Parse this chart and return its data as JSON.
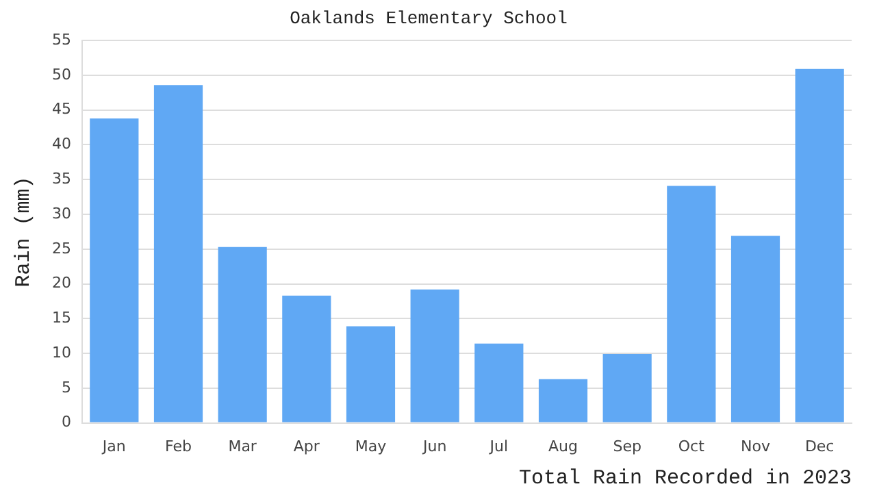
{
  "chart_data": {
    "type": "bar",
    "title": "Oaklands Elementary School",
    "xlabel": "Total Rain Recorded in 2023",
    "ylabel": "Rain (mm)",
    "categories": [
      "Jan",
      "Feb",
      "Mar",
      "Apr",
      "May",
      "Jun",
      "Jul",
      "Aug",
      "Sep",
      "Oct",
      "Nov",
      "Dec"
    ],
    "values": [
      43.8,
      48.6,
      25.3,
      18.3,
      13.9,
      19.2,
      11.4,
      6.3,
      9.9,
      34.1,
      26.9,
      50.9
    ],
    "color": "#60a8f4",
    "ylim": [
      0,
      55
    ],
    "yticks": [
      0,
      5,
      10,
      15,
      20,
      25,
      30,
      35,
      40,
      45,
      50,
      55
    ],
    "grid": "y"
  }
}
